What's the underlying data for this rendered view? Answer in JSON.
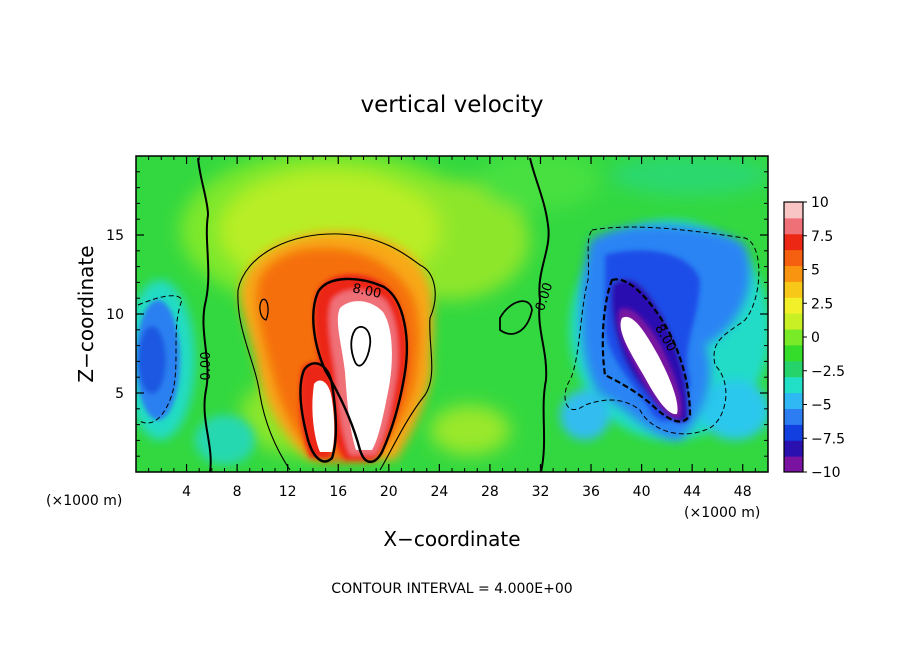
{
  "chart_data": {
    "type": "heatmap",
    "title": "vertical velocity",
    "xlabel": "X−coordinate",
    "ylabel": "Z−coordinate",
    "x_unit_label": "(×1000 m)",
    "y_unit_label": "(×1000 m)",
    "xlim": [
      0,
      50
    ],
    "ylim": [
      0,
      20
    ],
    "x_ticks": [
      4,
      8,
      12,
      16,
      20,
      24,
      28,
      32,
      36,
      40,
      44,
      48
    ],
    "y_ticks": [
      5,
      10,
      15
    ],
    "colorbar": {
      "ticks": [
        "10",
        "7.5",
        "5",
        "2.5",
        "0",
        "−2.5",
        "−5",
        "−7.5",
        "−10"
      ],
      "min": -10,
      "max": 10,
      "colors": [
        "#7a14a0",
        "#2b10b0",
        "#1240e0",
        "#2c7cf2",
        "#30b8f4",
        "#22e0c8",
        "#25d36a",
        "#33dd2a",
        "#78ea28",
        "#c8f025",
        "#f2f028",
        "#f8c818",
        "#f89410",
        "#f56010",
        "#ec2814",
        "#f07078",
        "#f8c4c4"
      ]
    },
    "contour_labels": [
      "0.00",
      "0.00",
      "8.00",
      "8.00"
    ],
    "contour_interval_text": "CONTOUR INTERVAL = 4.000E+00",
    "features": [
      {
        "kind": "updraft",
        "x_center": 18,
        "z_center": 8,
        "w_max": 10
      },
      {
        "kind": "updraft",
        "x_center": 15,
        "z_center": 4,
        "w_max": 10
      },
      {
        "kind": "downdraft",
        "x_center": 40.5,
        "z_center": 7,
        "w_min": -10
      },
      {
        "kind": "weak downdraft",
        "x_center": 1,
        "z_center": 7.5,
        "w_min": -5
      }
    ]
  }
}
